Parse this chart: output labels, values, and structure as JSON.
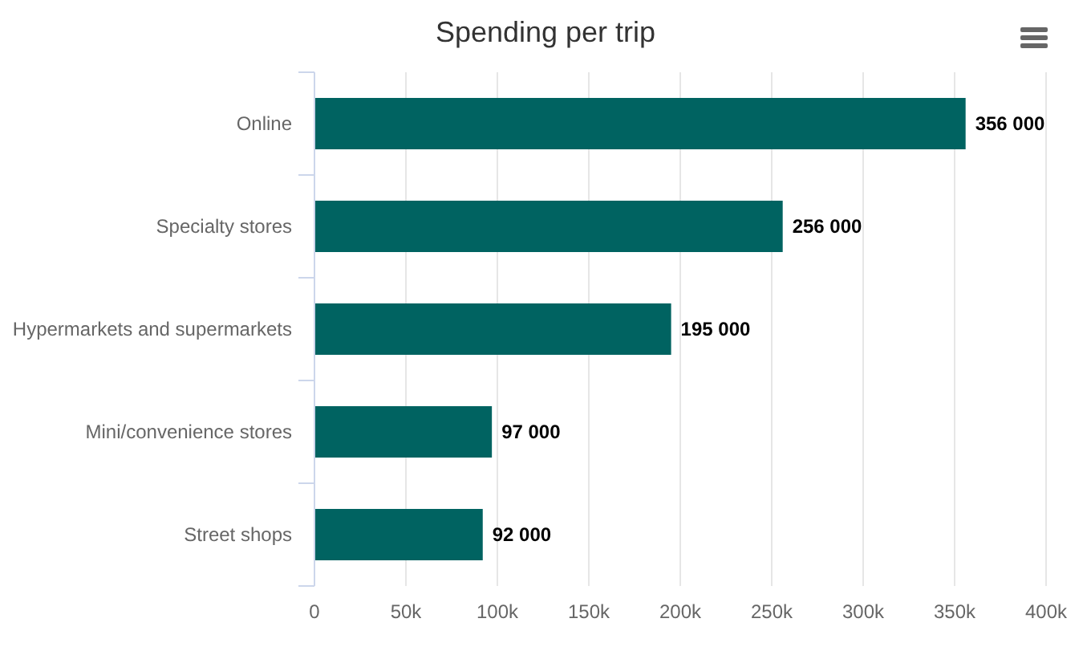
{
  "chart_data": {
    "type": "bar",
    "orientation": "horizontal",
    "title": "Spending per trip",
    "categories": [
      "Online",
      "Specialty stores",
      "Hypermarkets and supermarkets",
      "Mini/convenience stores",
      "Street shops"
    ],
    "values": [
      356000,
      256000,
      195000,
      97000,
      92000
    ],
    "value_labels": [
      "356 000",
      "256 000",
      "195 000",
      "97 000",
      "92 000"
    ],
    "color": "#006361",
    "xlim": [
      0,
      400000
    ],
    "xticks": [
      {
        "value": 0,
        "label": "0"
      },
      {
        "value": 50000,
        "label": "50k"
      },
      {
        "value": 100000,
        "label": "100k"
      },
      {
        "value": 150000,
        "label": "150k"
      },
      {
        "value": 200000,
        "label": "200k"
      },
      {
        "value": 250000,
        "label": "250k"
      },
      {
        "value": 300000,
        "label": "300k"
      },
      {
        "value": 350000,
        "label": "350k"
      },
      {
        "value": 400000,
        "label": "400k"
      }
    ],
    "grid": "x"
  }
}
